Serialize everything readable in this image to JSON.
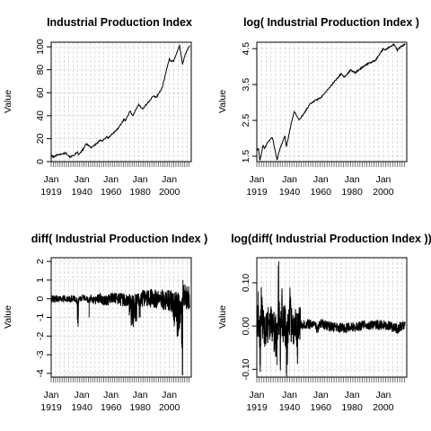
{
  "chart_data": [
    {
      "type": "line",
      "title": "Industrial Production Index",
      "ylabel": "Value",
      "xlabel": "",
      "xlim": [
        1919,
        2015
      ],
      "ylim": [
        0,
        104
      ],
      "yticks": [
        0,
        20,
        40,
        60,
        80,
        100
      ],
      "xticks": [
        {
          "year": 1919,
          "label": "Jan\n1919"
        },
        {
          "year": 1940,
          "label": "Jan\n1940"
        },
        {
          "year": 1960,
          "label": "Jan\n1960"
        },
        {
          "year": 1980,
          "label": "Jan\n1980"
        },
        {
          "year": 2000,
          "label": "Jan\n2000"
        }
      ],
      "grid": true,
      "series": [
        {
          "x": [
            1919,
            1921,
            1923,
            1926,
            1929,
            1932,
            1935,
            1937,
            1938,
            1941,
            1943,
            1945,
            1946,
            1950,
            1953,
            1954,
            1957,
            1958,
            1960,
            1965,
            1969,
            1970,
            1973,
            1975,
            1979,
            1980,
            1982,
            1985,
            1989,
            1991,
            1995,
            2000,
            2001,
            2003,
            2007,
            2009,
            2011,
            2014
          ],
          "values": [
            5,
            4,
            6,
            6.5,
            7.5,
            4,
            6,
            8,
            6,
            11,
            15.5,
            14,
            12,
            15.5,
            19,
            18,
            21.5,
            20.5,
            23,
            29,
            37,
            36,
            44,
            40,
            50,
            48,
            46,
            51,
            57,
            56,
            64,
            90,
            87,
            88,
            101,
            85,
            94,
            101
          ]
        }
      ]
    },
    {
      "type": "line",
      "title": "log( Industrial Production Index )",
      "ylabel": "Value",
      "xlabel": "",
      "xlim": [
        1919,
        2015
      ],
      "ylim": [
        1.35,
        4.68
      ],
      "yticks": [
        1.5,
        2.5,
        3.5,
        4.5
      ],
      "xticks": [
        {
          "year": 1919,
          "label": "Jan\n1919"
        },
        {
          "year": 1940,
          "label": "Jan\n1940"
        },
        {
          "year": 1960,
          "label": "Jan\n1960"
        },
        {
          "year": 1980,
          "label": "Jan\n1980"
        },
        {
          "year": 2000,
          "label": "Jan\n2000"
        }
      ],
      "grid": true,
      "series": [
        {
          "x": [
            1919,
            1920,
            1921,
            1923,
            1924,
            1926,
            1929,
            1930,
            1932,
            1933,
            1935,
            1937,
            1938,
            1941,
            1943,
            1945,
            1946,
            1950,
            1953,
            1957,
            1960,
            1965,
            1969,
            1973,
            1975,
            1979,
            1982,
            1989,
            1995,
            2000,
            2001,
            2007,
            2009,
            2011,
            2014
          ],
          "values": [
            1.65,
            1.72,
            1.38,
            1.8,
            1.72,
            1.9,
            2.02,
            1.8,
            1.38,
            1.6,
            1.85,
            2.05,
            1.78,
            2.4,
            2.75,
            2.6,
            2.5,
            2.75,
            2.95,
            3.07,
            3.13,
            3.38,
            3.6,
            3.8,
            3.7,
            3.9,
            3.83,
            4.06,
            4.17,
            4.5,
            4.47,
            4.62,
            4.45,
            4.55,
            4.62
          ]
        }
      ]
    },
    {
      "type": "line",
      "title": "diff( Industrial Production Index )",
      "ylabel": "Value",
      "xlabel": "",
      "xlim": [
        1919,
        2015
      ],
      "ylim": [
        -4.2,
        2.2
      ],
      "yticks": [
        -4,
        -3,
        -2,
        -1,
        0,
        1,
        2
      ],
      "xticks": [
        {
          "year": 1919,
          "label": "Jan\n1919"
        },
        {
          "year": 1940,
          "label": "Jan\n1940"
        },
        {
          "year": 1960,
          "label": "Jan\n1960"
        },
        {
          "year": 1980,
          "label": "Jan\n1980"
        },
        {
          "year": 2000,
          "label": "Jan\n2000"
        }
      ],
      "grid": true,
      "series": [
        {
          "x": [
            1919,
            1921,
            1924,
            1927,
            1930,
            1932,
            1935,
            1937.5,
            1938,
            1941,
            1945,
            1946,
            1949,
            1953,
            1954,
            1958,
            1960,
            1970,
            1975,
            1980,
            1982,
            2001,
            2008.5,
            2009,
            2009.3,
            2014
          ],
          "values": [
            0.1,
            -0.2,
            0.2,
            0,
            -0.3,
            -0.2,
            0.3,
            -1.5,
            0.3,
            0.4,
            -1,
            0.2,
            -0.5,
            0.5,
            -0.4,
            -0.6,
            0.5,
            -0.6,
            -1.2,
            -1.0,
            0.5,
            -0.8,
            -1.9,
            -4.1,
            1.0,
            0.3
          ]
        }
      ]
    },
    {
      "type": "line",
      "title": "log(diff( Industrial Production Index ))",
      "ylabel": "Value",
      "xlabel": "",
      "xlim": [
        1919,
        2015
      ],
      "ylim": [
        -0.118,
        0.158
      ],
      "yticks": [
        -0.1,
        0.0,
        0.1
      ],
      "ytick_labels": [
        "-0.10",
        "0.00",
        "0.10"
      ],
      "xticks": [
        {
          "year": 1919,
          "label": "Jan\n1919"
        },
        {
          "year": 1940,
          "label": "Jan\n1940"
        },
        {
          "year": 1960,
          "label": "Jan\n1960"
        },
        {
          "year": 1980,
          "label": "Jan\n1980"
        },
        {
          "year": 2000,
          "label": "Jan\n2000"
        }
      ],
      "grid": true,
      "series": [
        {
          "x": [
            1919,
            1920,
            1921,
            1922,
            1924,
            1926,
            1929,
            1930,
            1931,
            1932,
            1933,
            1934,
            1935,
            1937,
            1938,
            1940,
            1942,
            1945,
            1946,
            1950,
            1955,
            1958,
            1960,
            1970,
            1975,
            1980,
            1990,
            2000,
            2008,
            2009,
            2012,
            2014
          ],
          "values": [
            0.02,
            0.08,
            -0.09,
            0.07,
            -0.04,
            0.03,
            0.05,
            -0.06,
            -0.07,
            -0.09,
            0.15,
            -0.08,
            0.07,
            0.02,
            -0.11,
            0.06,
            0.03,
            -0.07,
            0.02,
            0.04,
            0.02,
            -0.04,
            0.03,
            -0.03,
            -0.03,
            -0.02,
            0.02,
            0.02,
            -0.03,
            -0.05,
            0.02,
            0.01
          ]
        }
      ]
    }
  ]
}
